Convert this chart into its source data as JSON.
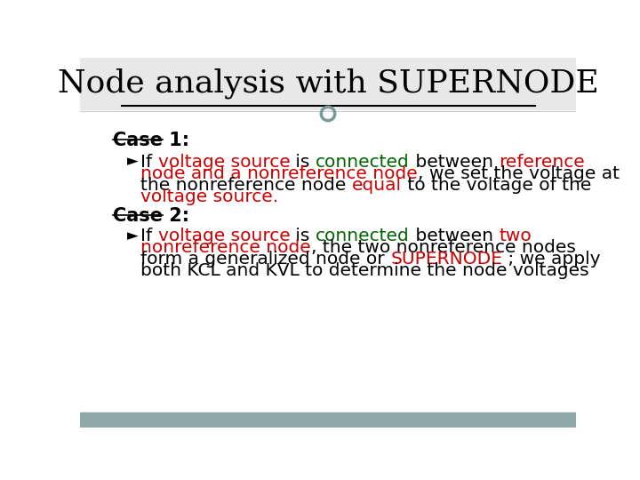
{
  "title": "Node analysis with SUPERNODE",
  "background_color": "#ffffff",
  "title_color": "#000000",
  "title_fontsize": 26,
  "body_fontsize": 14.5,
  "case1_label": "Case 1:",
  "case2_label": "Case 2:",
  "case_fontsize": 15,
  "bullet_char": "►",
  "footer_color": "#8fa8a8",
  "ring_color": "#7a9a9a",
  "red_color": "#cc0000",
  "connected_color": "#006400",
  "black_color": "#000000",
  "title_bg_color": "#e8e8e8"
}
